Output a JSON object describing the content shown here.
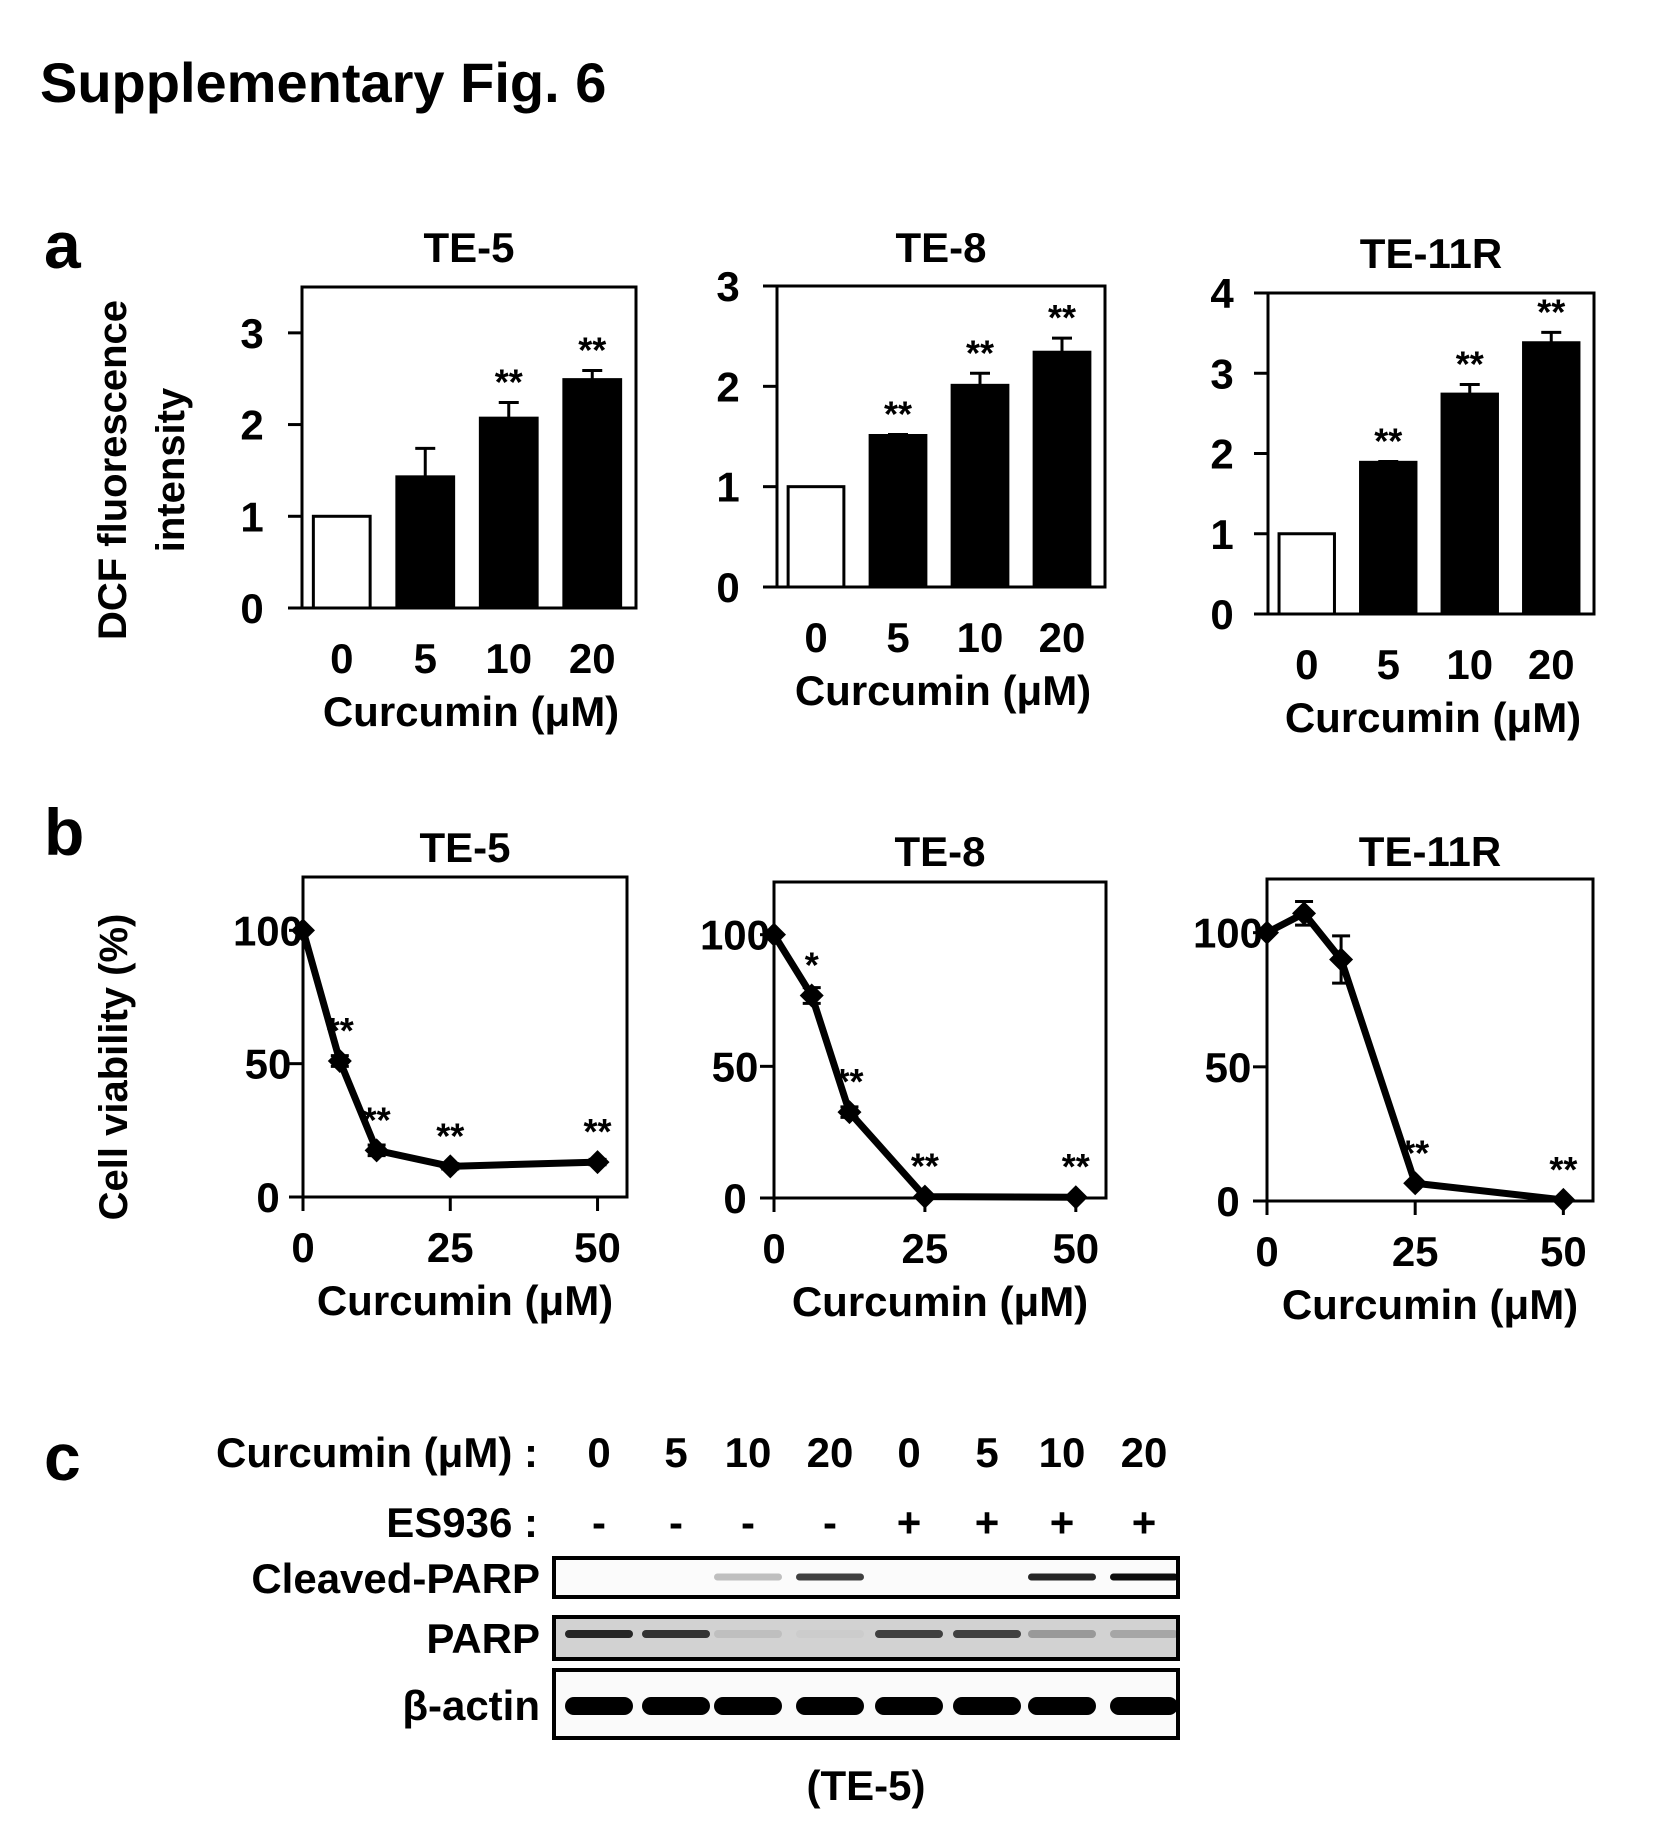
{
  "figure_title": "Supplementary Fig. 6",
  "panel_labels": {
    "a": "a",
    "b": "b",
    "c": "c"
  },
  "colors": {
    "ink": "#000000",
    "control_bar": "#ffffff",
    "treated_bar": "#000000",
    "paper": "#ffffff"
  },
  "chart_data": [
    {
      "panel": "a",
      "type": "bar",
      "title": "TE-5",
      "xlabel": "Curcumin (μM)",
      "ylabel": "DCF fluorescence intensity",
      "ylabel_lines": [
        "DCF fluorescence",
        "intensity"
      ],
      "categories": [
        "0",
        "5",
        "10",
        "20"
      ],
      "values": [
        1.0,
        1.43,
        2.07,
        2.49
      ],
      "errors": [
        0,
        0.31,
        0.17,
        0.1
      ],
      "significance": [
        "",
        "",
        "**",
        "**"
      ],
      "ylim": [
        0,
        3.5
      ],
      "yticks": [
        0,
        1,
        2,
        3
      ]
    },
    {
      "panel": "a",
      "type": "bar",
      "title": "TE-8",
      "xlabel": "Curcumin (μM)",
      "ylabel": "",
      "categories": [
        "0",
        "5",
        "10",
        "20"
      ],
      "values": [
        1.0,
        1.51,
        2.01,
        2.34
      ],
      "errors": [
        0,
        0.01,
        0.12,
        0.14
      ],
      "significance": [
        "",
        "**",
        "**",
        "**"
      ],
      "ylim": [
        0,
        3
      ],
      "yticks": [
        0,
        1,
        2,
        3
      ]
    },
    {
      "panel": "a",
      "type": "bar",
      "title": "TE-11R",
      "xlabel": "Curcumin (μM)",
      "ylabel": "",
      "categories": [
        "0",
        "5",
        "10",
        "20"
      ],
      "values": [
        1.0,
        1.89,
        2.74,
        3.38
      ],
      "errors": [
        0,
        0.01,
        0.12,
        0.13
      ],
      "significance": [
        "",
        "**",
        "**",
        "**"
      ],
      "ylim": [
        0,
        4
      ],
      "yticks": [
        0,
        1,
        2,
        3,
        4
      ]
    },
    {
      "panel": "b",
      "type": "line",
      "title": "TE-5",
      "xlabel": "Curcumin (μM)",
      "ylabel": "Cell viability (%)",
      "x": [
        0,
        6.25,
        12.5,
        25,
        50
      ],
      "y": [
        100,
        51,
        17.5,
        11.5,
        13.1
      ],
      "errors": [
        0,
        2,
        2,
        1,
        1
      ],
      "significance": [
        "",
        "**",
        "**",
        "**",
        "**"
      ],
      "xlim": [
        0,
        55
      ],
      "xticks": [
        0,
        25,
        50
      ],
      "ylim": [
        0,
        120
      ],
      "yticks": [
        0,
        50,
        100
      ]
    },
    {
      "panel": "b",
      "type": "line",
      "title": "TE-8",
      "xlabel": "Curcumin (μM)",
      "ylabel": "",
      "x": [
        0,
        6.25,
        12.5,
        25,
        50
      ],
      "y": [
        100,
        76.9,
        32.6,
        0.5,
        0.3
      ],
      "errors": [
        0,
        3,
        2,
        0,
        0
      ],
      "significance": [
        "",
        "*",
        "**",
        "**",
        "**"
      ],
      "xlim": [
        0,
        55
      ],
      "xticks": [
        0,
        25,
        50
      ],
      "ylim": [
        0,
        120
      ],
      "yticks": [
        0,
        50,
        100
      ]
    },
    {
      "panel": "b",
      "type": "line",
      "title": "TE-11R",
      "xlabel": "Curcumin (μM)",
      "ylabel": "",
      "x": [
        0,
        6.25,
        12.5,
        25,
        50
      ],
      "y": [
        100,
        107.2,
        90.0,
        6.6,
        0.4
      ],
      "errors": [
        0,
        4.4,
        8.8,
        0,
        0
      ],
      "significance": [
        "",
        "",
        "",
        "**",
        "**"
      ],
      "xlim": [
        0,
        55
      ],
      "xticks": [
        0,
        25,
        50
      ],
      "ylim": [
        0,
        120
      ],
      "yticks": [
        0,
        50,
        100
      ]
    }
  ],
  "western_blot": {
    "row_labels": {
      "curcumin": "Curcumin (μM) :",
      "es936": "ES936 :"
    },
    "curcumin_doses": [
      "0",
      "5",
      "10",
      "20",
      "0",
      "5",
      "10",
      "20"
    ],
    "es936": [
      "-",
      "-",
      "-",
      "-",
      "+",
      "+",
      "+",
      "+"
    ],
    "bands": [
      {
        "label": "Cleaved-PARP",
        "intensity": [
          0,
          0,
          0.25,
          0.75,
          0,
          0,
          0.85,
          0.95
        ],
        "background": 0.02
      },
      {
        "label": "PARP",
        "intensity": [
          0.85,
          0.8,
          0.25,
          0.2,
          0.75,
          0.75,
          0.4,
          0.35
        ],
        "background": 0.25
      },
      {
        "label": "β-actin",
        "intensity": [
          1,
          1,
          1,
          1,
          1,
          1,
          1,
          1
        ],
        "background": 0.03
      }
    ],
    "caption": "(TE-5)"
  }
}
